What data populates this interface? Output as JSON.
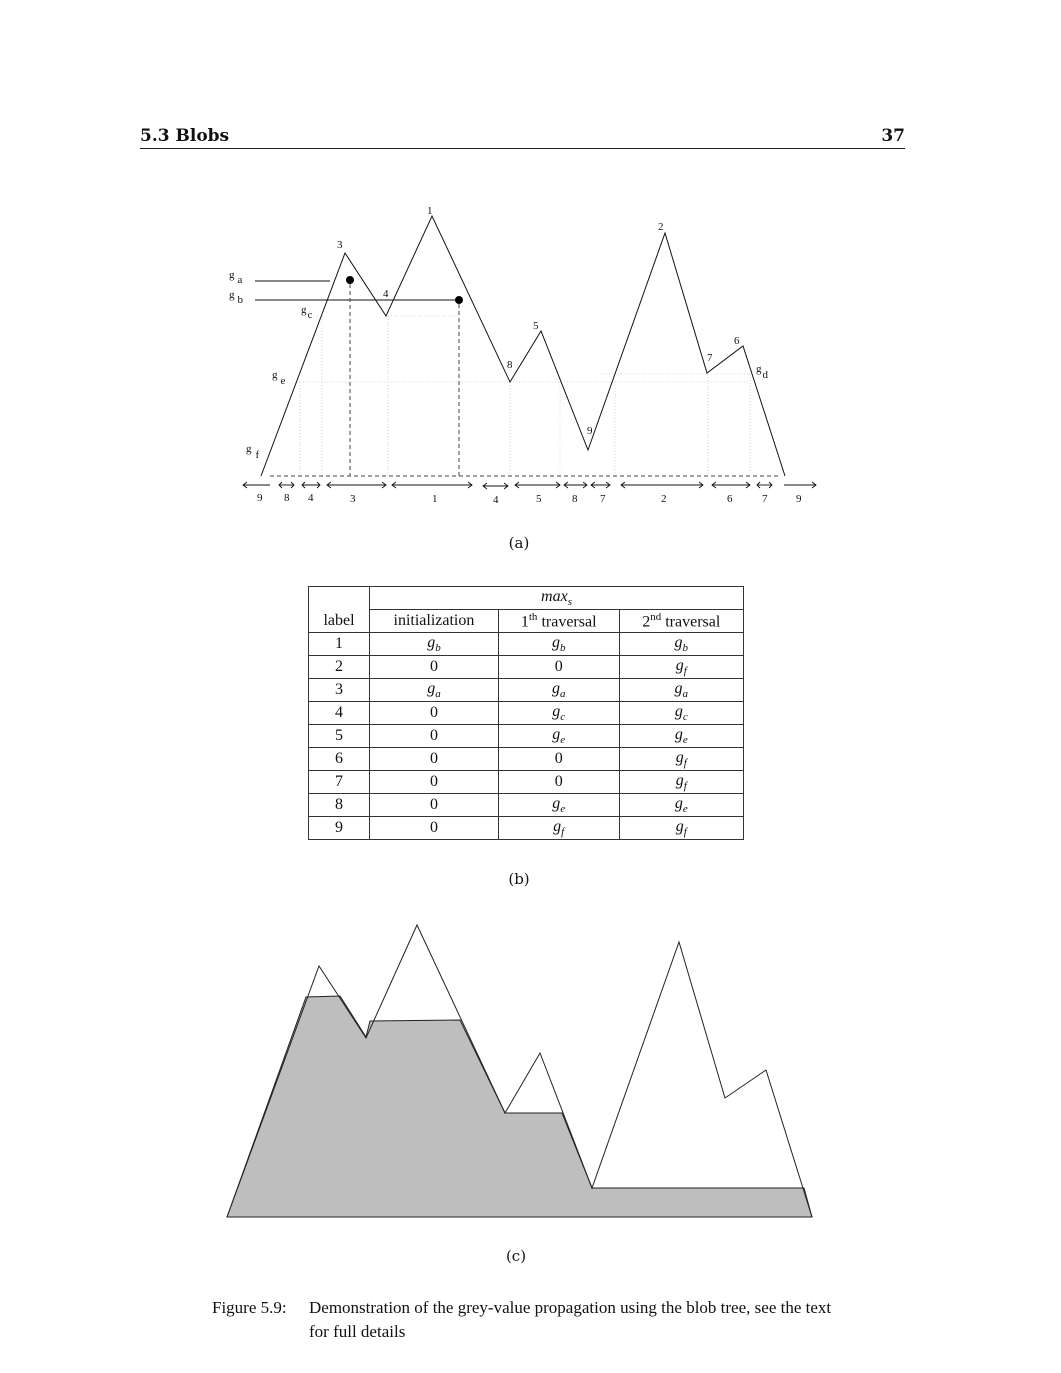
{
  "header": {
    "section": "5.3 Blobs",
    "page": "37"
  },
  "figure_a": {
    "sublabel": "(a)",
    "peak_labels": [
      "1",
      "2",
      "3",
      "4",
      "5",
      "6",
      "7",
      "8",
      "9"
    ],
    "grey_labels": [
      {
        "g": "g",
        "sub": "a"
      },
      {
        "g": "g",
        "sub": "b"
      },
      {
        "g": "g",
        "sub": "c"
      },
      {
        "g": "g",
        "sub": "d"
      },
      {
        "g": "g",
        "sub": "e"
      },
      {
        "g": "g",
        "sub": "f"
      }
    ],
    "interval_labels": [
      "9",
      "8",
      "4",
      "3",
      "1",
      "4",
      "5",
      "8",
      "7",
      "2",
      "6",
      "7",
      "9"
    ]
  },
  "table_b": {
    "sublabel": "(b)",
    "group_header": "max",
    "group_header_sub": "s",
    "label_header": "label",
    "col_headers": [
      {
        "pre": "initialization",
        "sup": "",
        "post": ""
      },
      {
        "pre": "1",
        "sup": "th",
        "post": " traversal"
      },
      {
        "pre": "2",
        "sup": "nd",
        "post": " traversal"
      }
    ],
    "rows": [
      {
        "label": "1",
        "init": "g_b",
        "t1": "g_b",
        "t2": "g_b"
      },
      {
        "label": "2",
        "init": "0",
        "t1": "0",
        "t2": "g_f"
      },
      {
        "label": "3",
        "init": "g_a",
        "t1": "g_a",
        "t2": "g_a"
      },
      {
        "label": "4",
        "init": "0",
        "t1": "g_c",
        "t2": "g_c"
      },
      {
        "label": "5",
        "init": "0",
        "t1": "g_e",
        "t2": "g_e"
      },
      {
        "label": "6",
        "init": "0",
        "t1": "0",
        "t2": "g_f"
      },
      {
        "label": "7",
        "init": "0",
        "t1": "0",
        "t2": "g_f"
      },
      {
        "label": "8",
        "init": "0",
        "t1": "g_e",
        "t2": "g_e"
      },
      {
        "label": "9",
        "init": "0",
        "t1": "g_f",
        "t2": "g_f"
      }
    ]
  },
  "figure_c": {
    "sublabel": "(c)",
    "fill_color": "#bebebe"
  },
  "caption": {
    "number": "Figure 5.9:",
    "text": "Demonstration of the grey-value propagation using the blob tree, see the text for full details"
  }
}
